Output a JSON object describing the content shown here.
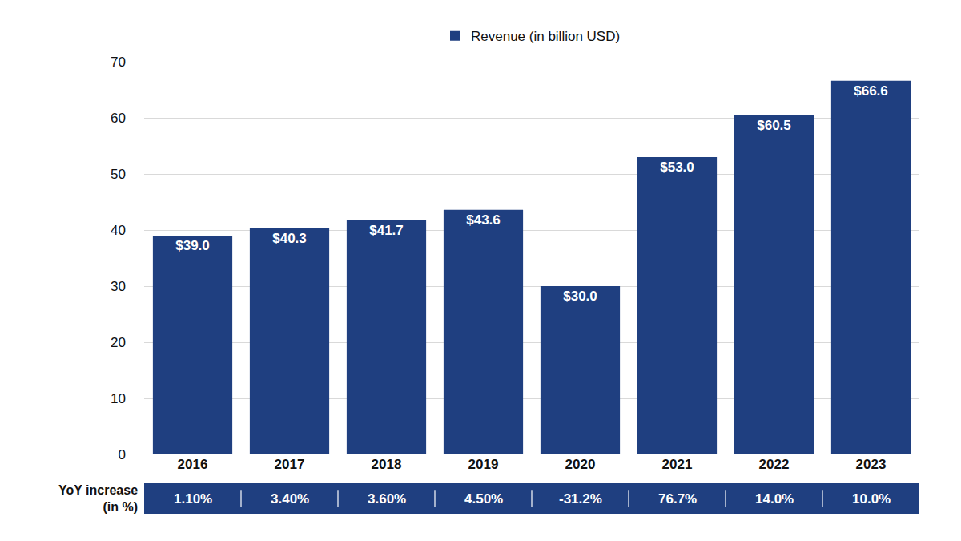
{
  "chart_data": {
    "type": "bar",
    "categories": [
      "2016",
      "2017",
      "2018",
      "2019",
      "2020",
      "2021",
      "2022",
      "2023"
    ],
    "series": [
      {
        "name": "Revenue (in billion USD)",
        "color": "#1f3f80",
        "values": [
          39.0,
          40.3,
          41.7,
          43.6,
          30.0,
          53.0,
          60.5,
          66.6
        ],
        "value_labels": [
          "$39.0",
          "$40.3",
          "$41.7",
          "$43.6",
          "$30.0",
          "$53.0",
          "$60.5",
          "$66.6"
        ]
      }
    ],
    "ylim": [
      0,
      70
    ],
    "yticks": [
      0,
      10,
      20,
      30,
      40,
      50,
      60,
      70
    ],
    "grid": true,
    "legend": "top",
    "data_labels": true,
    "yoy": {
      "title": [
        "YoY increase",
        "(in %)"
      ],
      "values": [
        1.1,
        3.4,
        3.6,
        4.5,
        -31.2,
        76.7,
        14.0,
        10.0
      ],
      "value_labels": [
        "1.10%",
        "3.40%",
        "3.60%",
        "4.50%",
        "-31.2%",
        "76.7%",
        "14.0%",
        "10.0%"
      ],
      "color": "#1f3f80"
    }
  }
}
